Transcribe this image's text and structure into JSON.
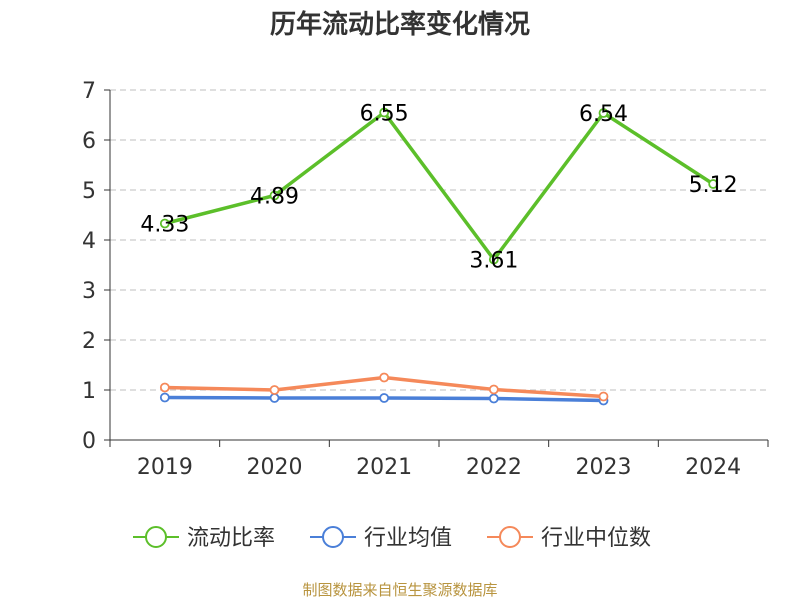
{
  "chart_data": {
    "type": "line",
    "title": "历年流动比率变化情况",
    "categories": [
      "2019",
      "2020",
      "2021",
      "2022",
      "2023",
      "2024"
    ],
    "ylim": [
      0,
      7
    ],
    "yticks": [
      0,
      1,
      2,
      3,
      4,
      5,
      6,
      7
    ],
    "grid": true,
    "legend_position": "bottom",
    "series": [
      {
        "name": "流动比率",
        "color": "#5cbf2a",
        "values": [
          4.33,
          4.89,
          6.55,
          3.61,
          6.54,
          5.12
        ],
        "labels": [
          "4.33",
          "4.89",
          "6.55",
          "3.61",
          "6.54",
          "5.12"
        ]
      },
      {
        "name": "行业均值",
        "color": "#4a7fd8",
        "values": [
          0.85,
          0.84,
          0.84,
          0.83,
          0.79,
          null
        ]
      },
      {
        "name": "行业中位数",
        "color": "#f5895a",
        "values": [
          1.05,
          1.0,
          1.25,
          1.01,
          0.87,
          null
        ]
      }
    ]
  },
  "source": "制图数据来自恒生聚源数据库"
}
